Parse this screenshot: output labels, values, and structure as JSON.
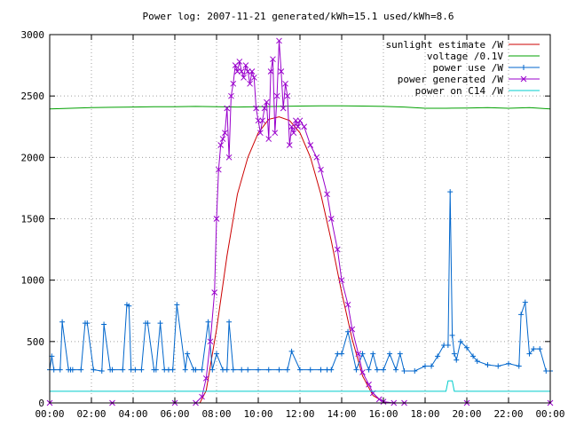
{
  "chart_data": {
    "type": "line",
    "title": "Power log: 2007-11-21 generated/kWh=15.1 used/kWh=8.6",
    "xlabel": "",
    "ylabel": "",
    "x_unit": "hour of day",
    "xlim": [
      0,
      24
    ],
    "ylim": [
      0,
      3000
    ],
    "x_ticks": [
      "00:00",
      "02:00",
      "04:00",
      "06:00",
      "08:00",
      "10:00",
      "12:00",
      "14:00",
      "16:00",
      "18:00",
      "20:00",
      "22:00",
      "00:00"
    ],
    "y_ticks": [
      0,
      500,
      1000,
      1500,
      2000,
      2500,
      3000
    ],
    "grid": true,
    "legend_position": "top-right",
    "series": [
      {
        "name": "sunlight estimate /W",
        "color": "#cc0000",
        "marker": "none",
        "x": [
          7.2,
          7.5,
          8.0,
          8.5,
          9.0,
          9.5,
          10.0,
          10.5,
          11.0,
          11.5,
          12.0,
          12.5,
          13.0,
          13.5,
          14.0,
          14.5,
          15.0,
          15.5,
          16.0,
          16.2
        ],
        "y": [
          0,
          100,
          600,
          1200,
          1700,
          2000,
          2200,
          2310,
          2330,
          2300,
          2200,
          2000,
          1700,
          1320,
          900,
          520,
          220,
          60,
          10,
          0
        ]
      },
      {
        "name": "voltage /0.1V",
        "color": "#00a000",
        "marker": "none",
        "x": [
          0,
          1,
          2,
          3,
          4,
          5,
          6,
          7,
          8,
          9,
          10,
          11,
          12,
          13,
          14,
          15,
          16,
          17,
          18,
          19,
          20,
          21,
          22,
          23,
          24
        ],
        "y": [
          2395,
          2400,
          2405,
          2408,
          2410,
          2412,
          2412,
          2415,
          2413,
          2410,
          2412,
          2415,
          2418,
          2420,
          2420,
          2418,
          2415,
          2410,
          2400,
          2400,
          2402,
          2405,
          2400,
          2405,
          2395
        ]
      },
      {
        "name": "power use /W",
        "color": "#0066cc",
        "marker": "plus",
        "x": [
          0,
          0.1,
          0.2,
          0.5,
          0.6,
          0.9,
          1.0,
          1.1,
          1.5,
          1.7,
          1.8,
          2.1,
          2.5,
          2.6,
          2.9,
          3.0,
          3.5,
          3.7,
          3.8,
          3.9,
          4.1,
          4.4,
          4.6,
          4.7,
          5.0,
          5.1,
          5.3,
          5.5,
          5.7,
          5.9,
          6.1,
          6.5,
          6.6,
          6.9,
          7.0,
          7.3,
          7.6,
          7.8,
          8.0,
          8.3,
          8.5,
          8.6,
          8.8,
          9.2,
          9.5,
          10.0,
          10.5,
          11.0,
          11.4,
          11.6,
          12.0,
          12.5,
          13.0,
          13.3,
          13.5,
          13.8,
          14.0,
          14.3,
          14.7,
          15.0,
          15.3,
          15.5,
          15.7,
          16.0,
          16.3,
          16.6,
          16.8,
          17.0,
          17.5,
          18.0,
          18.3,
          18.6,
          18.9,
          19.1,
          19.2,
          19.3,
          19.4,
          19.5,
          19.7,
          20.0,
          20.3,
          20.5,
          21.0,
          21.5,
          22.0,
          22.5,
          22.6,
          22.8,
          23.0,
          23.2,
          23.5,
          23.8,
          24.0
        ],
        "y": [
          270,
          380,
          270,
          270,
          660,
          270,
          270,
          270,
          270,
          650,
          650,
          270,
          260,
          640,
          270,
          270,
          270,
          800,
          790,
          270,
          270,
          270,
          650,
          650,
          270,
          270,
          650,
          270,
          270,
          270,
          800,
          270,
          400,
          270,
          270,
          270,
          660,
          270,
          400,
          270,
          270,
          660,
          270,
          270,
          270,
          270,
          270,
          270,
          270,
          420,
          270,
          270,
          270,
          270,
          270,
          400,
          400,
          580,
          270,
          400,
          270,
          400,
          270,
          270,
          400,
          270,
          400,
          260,
          260,
          300,
          300,
          380,
          470,
          470,
          1720,
          550,
          400,
          350,
          500,
          450,
          380,
          340,
          310,
          300,
          320,
          300,
          720,
          820,
          400,
          440,
          440,
          260,
          260
        ]
      },
      {
        "name": "power generated /W",
        "color": "#9900cc",
        "marker": "cross",
        "x": [
          0,
          3,
          6,
          7.0,
          7.3,
          7.5,
          7.7,
          7.9,
          8.0,
          8.1,
          8.2,
          8.3,
          8.4,
          8.5,
          8.6,
          8.7,
          8.8,
          8.9,
          9.0,
          9.1,
          9.2,
          9.3,
          9.4,
          9.5,
          9.6,
          9.7,
          9.8,
          9.9,
          10.0,
          10.1,
          10.2,
          10.3,
          10.4,
          10.5,
          10.6,
          10.7,
          10.8,
          10.9,
          11.0,
          11.1,
          11.2,
          11.3,
          11.4,
          11.5,
          11.6,
          11.7,
          11.8,
          11.9,
          12.0,
          12.2,
          12.5,
          12.8,
          13.0,
          13.3,
          13.5,
          13.8,
          14.0,
          14.3,
          14.5,
          14.8,
          15.0,
          15.3,
          15.5,
          15.8,
          16.0,
          16.5,
          17.0,
          20.0,
          24.0
        ],
        "y": [
          0,
          0,
          0,
          0,
          50,
          200,
          500,
          900,
          1500,
          1900,
          2100,
          2150,
          2200,
          2400,
          2000,
          2500,
          2600,
          2750,
          2700,
          2780,
          2700,
          2650,
          2750,
          2700,
          2600,
          2700,
          2650,
          2400,
          2300,
          2200,
          2300,
          2400,
          2450,
          2150,
          2700,
          2800,
          2200,
          2500,
          2950,
          2700,
          2400,
          2600,
          2500,
          2100,
          2250,
          2200,
          2300,
          2250,
          2300,
          2250,
          2100,
          2000,
          1900,
          1700,
          1500,
          1250,
          1000,
          800,
          600,
          400,
          250,
          150,
          80,
          30,
          10,
          0,
          0,
          0,
          0
        ]
      },
      {
        "name": "power on C14 /W",
        "color": "#00cccc",
        "marker": "none",
        "x": [
          0,
          6,
          12,
          17,
          18.9,
          19.0,
          19.1,
          19.2,
          19.3,
          19.4,
          19.5,
          20,
          24
        ],
        "y": [
          95,
          95,
          95,
          95,
          95,
          95,
          180,
          180,
          180,
          95,
          95,
          95,
          95
        ]
      }
    ]
  }
}
